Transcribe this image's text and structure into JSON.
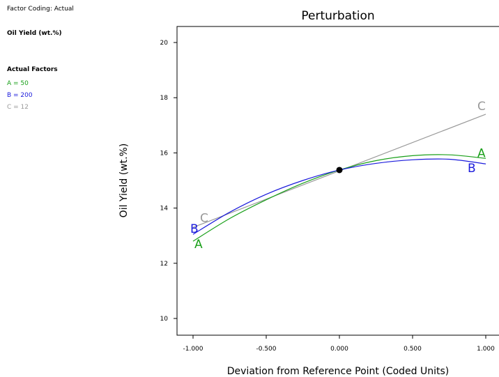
{
  "header": {
    "factor_coding": "Factor Coding: Actual",
    "response": "Oil Yield (wt.%)",
    "actual_factors_title": "Actual Factors",
    "actual_factors": [
      {
        "text": "A = 50",
        "color": "#1aa01a"
      },
      {
        "text": "B = 200",
        "color": "#1a1adc"
      },
      {
        "text": "C = 12",
        "color": "#999999"
      }
    ]
  },
  "chart_data": {
    "type": "line",
    "title": "Perturbation",
    "xlabel": "Deviation from Reference Point (Coded Units)",
    "ylabel": "Oil Yield (wt.%)",
    "xlim": [
      -1.1,
      1.1
    ],
    "ylim": [
      9.5,
      20.5
    ],
    "x_ticks": [
      -1.0,
      -0.5,
      0.0,
      0.5,
      1.0
    ],
    "x_tick_labels": [
      "-1.000",
      "-0.500",
      "0.000",
      "0.500",
      "1.000"
    ],
    "y_ticks": [
      10,
      12,
      14,
      16,
      18,
      20
    ],
    "y_tick_labels": [
      "10",
      "12",
      "14",
      "16",
      "18",
      "20"
    ],
    "reference_point": {
      "x": 0.0,
      "y": 15.38
    },
    "series": [
      {
        "name": "A",
        "color": "#1aa01a",
        "x": [
          -1.0,
          -0.75,
          -0.5,
          -0.25,
          0.0,
          0.25,
          0.5,
          0.75,
          1.0
        ],
        "y": [
          12.8,
          13.62,
          14.3,
          14.9,
          15.38,
          15.72,
          15.9,
          15.93,
          15.8
        ]
      },
      {
        "name": "B",
        "color": "#1a1adc",
        "x": [
          -1.0,
          -0.75,
          -0.5,
          -0.25,
          0.0,
          0.25,
          0.5,
          0.75,
          1.0
        ],
        "y": [
          13.05,
          13.85,
          14.5,
          15.0,
          15.38,
          15.62,
          15.75,
          15.77,
          15.6
        ]
      },
      {
        "name": "C",
        "color": "#999999",
        "x": [
          -1.0,
          1.0
        ],
        "y": [
          13.3,
          17.4
        ]
      }
    ]
  }
}
